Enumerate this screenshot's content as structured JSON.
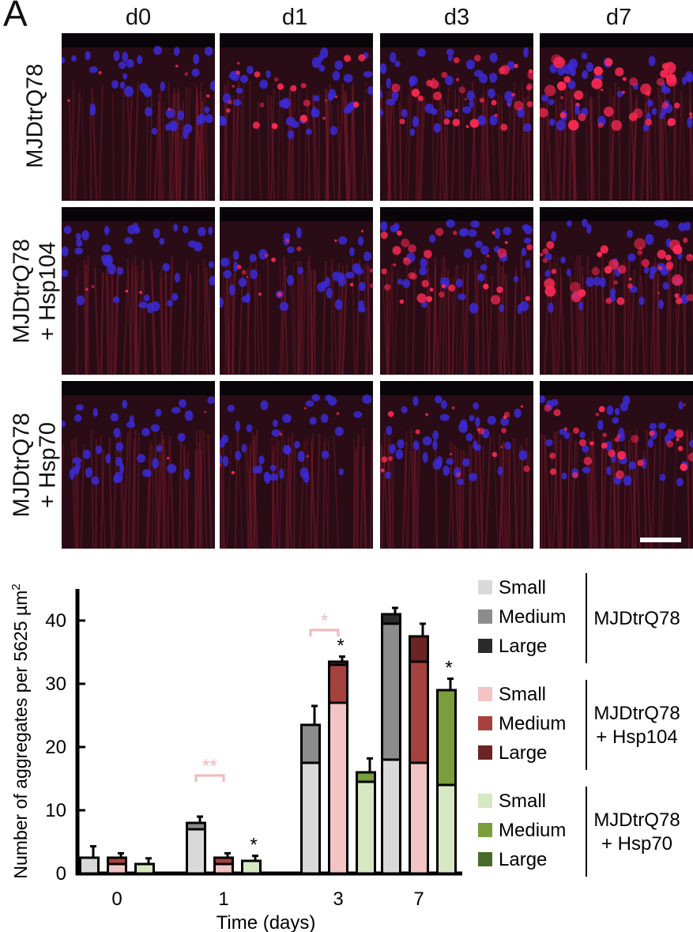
{
  "figure": {
    "panel_letter": "A",
    "columns": [
      "d0",
      "d1",
      "d3",
      "d7"
    ],
    "rows": [
      {
        "lines": [
          "MJDtrQ78"
        ]
      },
      {
        "lines": [
          "MJDtrQ78",
          "+ Hsp104"
        ]
      },
      {
        "lines": [
          "MJDtrQ78",
          "+ Hsp70"
        ]
      }
    ],
    "colors": {
      "nuclei": "#3b2ad6",
      "aggregates": "#ff2a55",
      "background": "#2a0c16"
    }
  },
  "chart_data": {
    "type": "bar",
    "stacked": true,
    "categories": [
      "0",
      "1",
      "3",
      "7"
    ],
    "xlabel": "Time (days)",
    "ylabel": "Number of aggregates per 5625 µm",
    "ylabel_superscript": "2",
    "ylim": [
      0,
      45
    ],
    "yticks": [
      0,
      10,
      20,
      30,
      40
    ],
    "groups": [
      {
        "name": "MJDtrQ78",
        "colors": {
          "Small": "#d9d9d9",
          "Medium": "#8c8c8c",
          "Large": "#2b2b2b"
        },
        "totals": [
          2.5,
          8.0,
          23.5,
          41.0
        ],
        "small": [
          2.5,
          7.0,
          17.5,
          18.0
        ],
        "medium": [
          0,
          1.0,
          6.0,
          21.5
        ],
        "large": [
          0,
          0,
          0,
          1.5
        ],
        "errors": [
          1.8,
          1.0,
          3.0,
          1.0
        ],
        "stars": [
          "",
          "",
          "",
          ""
        ]
      },
      {
        "name": "MJDtrQ78 + Hsp104",
        "colors": {
          "Small": "#f2c4c4",
          "Medium": "#a6423d",
          "Large": "#6b2424"
        },
        "totals": [
          2.5,
          2.5,
          33.5,
          37.5
        ],
        "small": [
          1.5,
          1.5,
          27.0,
          17.5
        ],
        "medium": [
          1.0,
          1.0,
          6.0,
          16.0
        ],
        "large": [
          0,
          0,
          0.5,
          4.0
        ],
        "errors": [
          0.7,
          0.7,
          0.8,
          2.0
        ],
        "stars": [
          "",
          "",
          "*",
          ""
        ]
      },
      {
        "name": "MJDtrQ78 + Hsp70",
        "colors": {
          "Small": "#d6e8c2",
          "Medium": "#7a9e3c",
          "Large": "#4a6a2a"
        },
        "totals": [
          1.5,
          2.0,
          16.0,
          29.0
        ],
        "small": [
          1.5,
          2.0,
          14.5,
          14.0
        ],
        "medium": [
          0,
          0,
          1.5,
          15.0
        ],
        "large": [
          0,
          0,
          0,
          0
        ],
        "errors": [
          0.9,
          0.8,
          2.2,
          1.8
        ],
        "stars": [
          "",
          "*",
          "",
          "*"
        ]
      }
    ],
    "brackets": [
      {
        "category": "1",
        "label": "**",
        "color": "#f2b8b8"
      },
      {
        "category": "3",
        "label": "*",
        "color": "#f2b8b8"
      }
    ],
    "legend": [
      {
        "group": "MJDtrQ78",
        "items": [
          "Small",
          "Medium",
          "Large"
        ]
      },
      {
        "group": "MJDtrQ78 + Hsp104",
        "items": [
          "Small",
          "Medium",
          "Large"
        ]
      },
      {
        "group": "MJDtrQ78 + Hsp70",
        "items": [
          "Small",
          "Medium",
          "Large"
        ]
      }
    ],
    "legend_group_labels": [
      [
        "MJDtrQ78"
      ],
      [
        "MJDtrQ78",
        "+ Hsp104"
      ],
      [
        "MJDtrQ78",
        "+ Hsp70"
      ]
    ],
    "legend_position": "right"
  }
}
